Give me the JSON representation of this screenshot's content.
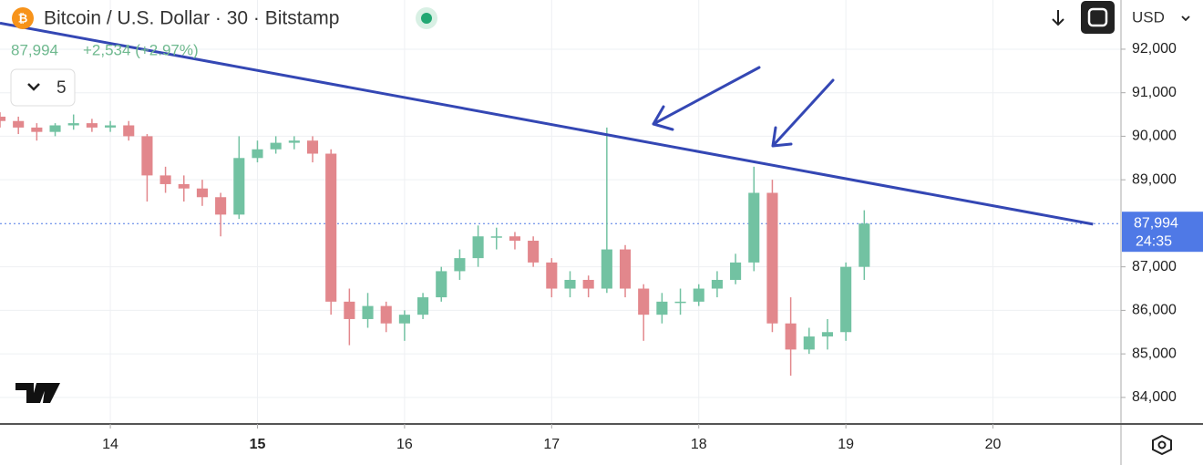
{
  "header": {
    "symbol": "Bitcoin / U.S. Dollar · 30 · Bitstamp",
    "change": "+2,534 (+2.97%)",
    "indicator_count": "5",
    "currency": "USD",
    "countdown": "24:35"
  },
  "chart_data": {
    "type": "candlestick",
    "x": [
      13.25,
      13.375,
      13.5,
      13.625,
      13.75,
      13.875,
      14,
      14.125,
      14.25,
      14.375,
      14.5,
      14.625,
      14.75,
      14.875,
      15,
      15.125,
      15.25,
      15.375,
      15.5,
      15.625,
      15.75,
      15.875,
      16,
      16.125,
      16.25,
      16.375,
      16.5,
      16.625,
      16.75,
      16.875,
      17,
      17.125,
      17.25,
      17.375,
      17.5,
      17.625,
      17.75,
      17.875,
      18,
      18.125,
      18.25,
      18.375,
      18.5,
      18.625,
      18.75,
      18.875,
      19,
      19.125
    ],
    "open": [
      90450,
      90350,
      90200,
      90100,
      90250,
      90300,
      90200,
      90250,
      90000,
      89100,
      88900,
      88800,
      88600,
      88200,
      89500,
      89700,
      89850,
      89900,
      89600,
      86200,
      85800,
      86100,
      85700,
      85900,
      86300,
      86900,
      87200,
      87700,
      87700,
      87600,
      87100,
      86500,
      86700,
      86500,
      87400,
      86500,
      85900,
      86200,
      86200,
      86500,
      86700,
      87100,
      88700,
      85700,
      85100,
      85400,
      85500,
      87000
    ],
    "high": [
      90550,
      90450,
      90300,
      90300,
      90500,
      90400,
      90350,
      90350,
      90050,
      89300,
      89100,
      89000,
      88700,
      90000,
      89900,
      90000,
      90000,
      90000,
      89700,
      86500,
      86400,
      86200,
      86000,
      86400,
      87000,
      87400,
      87950,
      87900,
      87800,
      87700,
      87200,
      86900,
      86800,
      90200,
      87500,
      86600,
      86400,
      86500,
      86600,
      86900,
      87300,
      89300,
      89000,
      86300,
      85600,
      85800,
      87100,
      88300
    ],
    "low": [
      90200,
      90050,
      89900,
      90000,
      90150,
      90100,
      90100,
      89900,
      88500,
      88700,
      88500,
      88400,
      87700,
      88100,
      89400,
      89600,
      89700,
      89400,
      85900,
      85200,
      85600,
      85500,
      85300,
      85800,
      86200,
      86700,
      87000,
      87400,
      87400,
      87000,
      86300,
      86300,
      86300,
      86400,
      86300,
      85300,
      85700,
      85900,
      86100,
      86300,
      86600,
      86900,
      85500,
      84500,
      85000,
      85100,
      85300,
      86700
    ],
    "close": [
      90350,
      90200,
      90100,
      90250,
      90300,
      90200,
      90250,
      90000,
      89100,
      88900,
      88800,
      88600,
      88200,
      89500,
      89700,
      89850,
      89900,
      89600,
      86200,
      85800,
      86100,
      85700,
      85900,
      86300,
      86900,
      87200,
      87700,
      87700,
      87600,
      87100,
      86500,
      86700,
      86500,
      87400,
      86500,
      85900,
      86200,
      86200,
      86500,
      86700,
      87100,
      88700,
      85700,
      85100,
      85400,
      85500,
      87000,
      87994
    ],
    "up_color": "#72c2a2",
    "down_color": "#e2878c",
    "last_price": {
      "value": 87994,
      "label": "87,994"
    },
    "trendline": {
      "x": [
        13.25,
        20.68
      ],
      "y": [
        92600,
        87980
      ],
      "color": "#3447b4"
    },
    "xlim": [
      13.25,
      20.87
    ],
    "xticks": [
      14,
      15,
      16,
      17,
      18,
      19,
      20
    ],
    "bold_xtick": 15,
    "ylim": [
      83390,
      93130
    ],
    "yticks": [
      {
        "value": 84000,
        "label": "84,000"
      },
      {
        "value": 85000,
        "label": "85,000"
      },
      {
        "value": 86000,
        "label": "86,000"
      },
      {
        "value": 87000,
        "label": "87,000"
      },
      {
        "value": 89000,
        "label": "89,000"
      },
      {
        "value": 90000,
        "label": "90,000"
      },
      {
        "value": 91000,
        "label": "91,000"
      },
      {
        "value": 92000,
        "label": "92,000"
      }
    ],
    "grid": true
  }
}
